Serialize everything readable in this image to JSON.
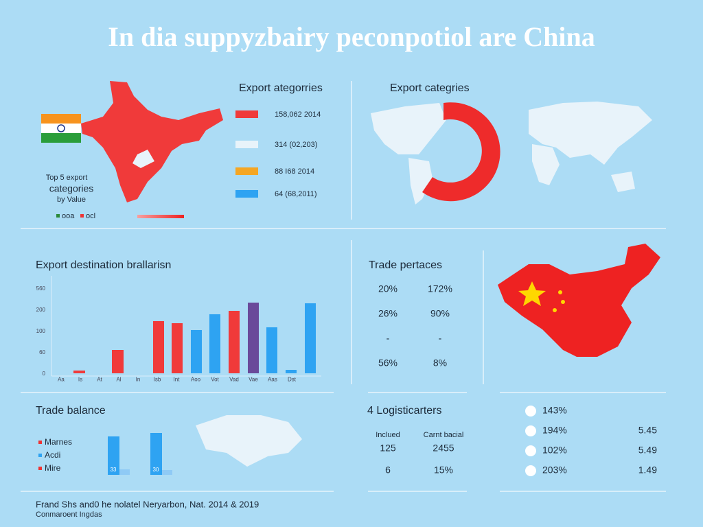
{
  "header": {
    "title": "In dia suppyzbairy peconpotiol are China"
  },
  "india_panel": {
    "flag_caption": [
      "Top 5 export",
      "categories",
      "by Value"
    ],
    "legend": [
      "ooa",
      "ocl"
    ]
  },
  "export_categories": {
    "title": "Export ategorries",
    "rows": [
      "158,062 2014",
      "314 (02,203)",
      "88 I68 2014",
      "64 (68,2011)"
    ]
  },
  "world_panel": {
    "title": "Export categries"
  },
  "destination": {
    "title": "Export destination brallarisn",
    "y_labels": [
      "560",
      "200",
      "100",
      "60",
      "0"
    ],
    "x_labels": [
      "Aa",
      "Is",
      "At",
      "Al",
      "In",
      "Isb",
      "Int",
      "Aoo",
      "Vot",
      "Vad",
      "Vae",
      "Aas",
      "Dst"
    ]
  },
  "trade_percentages": {
    "title": "Trade pertaces",
    "rows": [
      [
        "20%",
        "172%"
      ],
      [
        "26%",
        "90%"
      ],
      [
        "-",
        "-"
      ],
      [
        "56%",
        "8%"
      ]
    ]
  },
  "trade_balance": {
    "title": "Trade balance",
    "legend": [
      "Marnes",
      "Acdi",
      "Mire"
    ],
    "bar_labels": [
      "33",
      "30"
    ]
  },
  "logistics": {
    "title": "4 Logisticarters",
    "headers": [
      "Inclued",
      "Carnt bacial"
    ],
    "rows": [
      [
        "125",
        "2455"
      ],
      [
        "6",
        "15%"
      ]
    ]
  },
  "china_list": {
    "rows": [
      [
        "143%",
        ""
      ],
      [
        "194%",
        "5.45"
      ],
      [
        "102%",
        "5.49"
      ],
      [
        "203%",
        "1.49"
      ]
    ]
  },
  "footer": {
    "lines": [
      "Frand Shs and0 he nolatel Neryarbon, Nat. 2014 & 2019",
      "Conmaroent Ingdas"
    ]
  }
}
